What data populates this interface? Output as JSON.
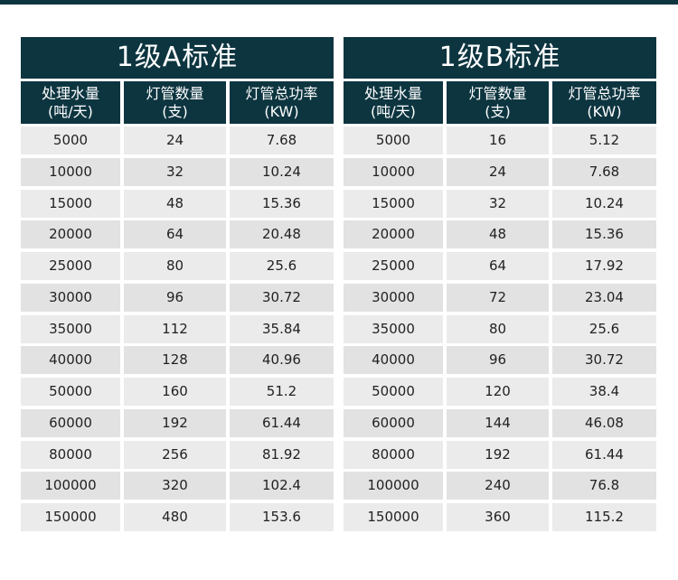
{
  "tables": [
    {
      "title": "1级A标准",
      "headers": [
        {
          "line1": "处理水量",
          "line2": "(吨/天)"
        },
        {
          "line1": "灯管数量",
          "line2": "(支)"
        },
        {
          "line1": "灯管总功率",
          "line2": "(KW)"
        }
      ],
      "rows": [
        [
          "5000",
          "24",
          "7.68"
        ],
        [
          "10000",
          "32",
          "10.24"
        ],
        [
          "15000",
          "48",
          "15.36"
        ],
        [
          "20000",
          "64",
          "20.48"
        ],
        [
          "25000",
          "80",
          "25.6"
        ],
        [
          "30000",
          "96",
          "30.72"
        ],
        [
          "35000",
          "112",
          "35.84"
        ],
        [
          "40000",
          "128",
          "40.96"
        ],
        [
          "50000",
          "160",
          "51.2"
        ],
        [
          "60000",
          "192",
          "61.44"
        ],
        [
          "80000",
          "256",
          "81.92"
        ],
        [
          "100000",
          "320",
          "102.4"
        ],
        [
          "150000",
          "480",
          "153.6"
        ]
      ]
    },
    {
      "title": "1级B标准",
      "headers": [
        {
          "line1": "处理水量",
          "line2": "(吨/天)"
        },
        {
          "line1": "灯管数量",
          "line2": "(支)"
        },
        {
          "line1": "灯管总功率",
          "line2": "(KW)"
        }
      ],
      "rows": [
        [
          "5000",
          "16",
          "5.12"
        ],
        [
          "10000",
          "24",
          "7.68"
        ],
        [
          "15000",
          "32",
          "10.24"
        ],
        [
          "20000",
          "48",
          "15.36"
        ],
        [
          "25000",
          "64",
          "17.92"
        ],
        [
          "30000",
          "72",
          "23.04"
        ],
        [
          "35000",
          "80",
          "25.6"
        ],
        [
          "40000",
          "96",
          "30.72"
        ],
        [
          "50000",
          "120",
          "38.4"
        ],
        [
          "60000",
          "144",
          "46.08"
        ],
        [
          "80000",
          "192",
          "61.44"
        ],
        [
          "100000",
          "240",
          "76.8"
        ],
        [
          "150000",
          "360",
          "115.2"
        ]
      ]
    }
  ]
}
